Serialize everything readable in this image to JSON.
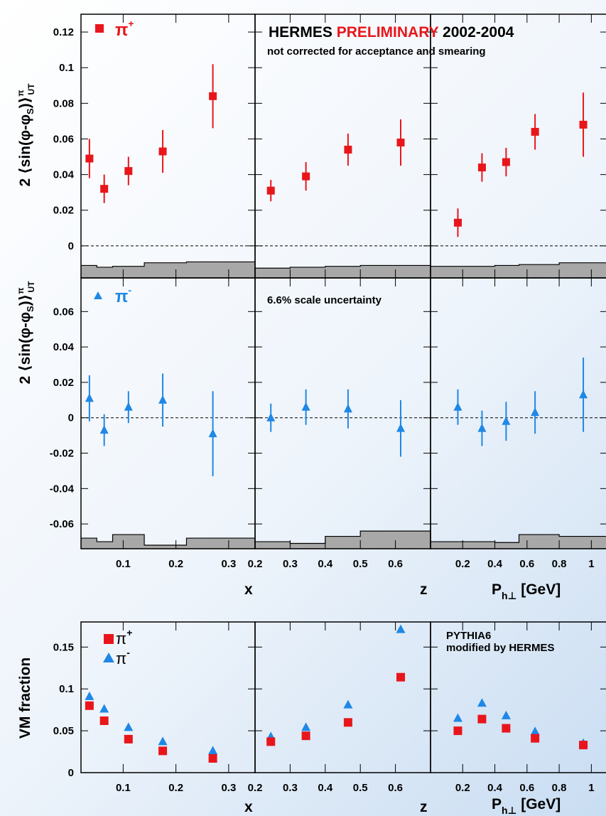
{
  "header": {
    "banner_prefix": "HERMES ",
    "banner_highlight": "PRELIMINARY",
    "banner_suffix": " 2002-2004",
    "banner_note": "not corrected for acceptance and smearing",
    "scale_note": "6.6% scale uncertainty",
    "model_line1": "PYTHIA6",
    "model_line2": "modified by HERMES"
  },
  "colors": {
    "pi_plus": "#e8161b",
    "pi_minus": "#1f88e5",
    "band_fill": "#a8a8a8",
    "banner_highlight": "#e8161b"
  },
  "chart_data": [
    {
      "type": "scatter",
      "panel": "top row: pi+ Sivers-type moment",
      "ylabel": "2 ⟨sin(φ-φS)⟩UTπ",
      "legend": [
        {
          "label": "π+",
          "marker": "square",
          "color": "#e8161b"
        }
      ],
      "xlabels": [
        "x",
        "z",
        "Ph⊥ [GeV]"
      ],
      "ylim": [
        -0.018,
        0.13
      ],
      "yticks": [
        "0",
        "0.02",
        "0.04",
        "0.06",
        "0.08",
        "0.1",
        "0.12"
      ],
      "series": [
        {
          "xvar": "x",
          "xlim": [
            0.02,
            0.35
          ],
          "x": [
            0.036,
            0.064,
            0.11,
            0.175,
            0.27
          ],
          "y": [
            0.049,
            0.032,
            0.042,
            0.053,
            0.084
          ],
          "err": [
            0.011,
            0.008,
            0.008,
            0.012,
            0.018
          ],
          "band_x": [
            0.02,
            0.05,
            0.08,
            0.14,
            0.22,
            0.35
          ],
          "band_top": [
            -0.011,
            -0.012,
            -0.0115,
            -0.0095,
            -0.009
          ]
        },
        {
          "xvar": "z",
          "xlim": [
            0.2,
            0.7
          ],
          "x": [
            0.245,
            0.345,
            0.465,
            0.615
          ],
          "y": [
            0.031,
            0.039,
            0.054,
            0.058
          ],
          "err": [
            0.006,
            0.008,
            0.009,
            0.013
          ],
          "band_x": [
            0.2,
            0.3,
            0.4,
            0.5,
            0.7
          ],
          "band_top": [
            -0.0125,
            -0.012,
            -0.0115,
            -0.011
          ]
        },
        {
          "xvar": "Ph⊥",
          "xlim": [
            0.0,
            1.1
          ],
          "x": [
            0.17,
            0.32,
            0.47,
            0.65,
            0.95
          ],
          "y": [
            0.013,
            0.044,
            0.047,
            0.064,
            0.068
          ],
          "err": [
            0.008,
            0.008,
            0.008,
            0.01,
            0.018
          ],
          "band_x": [
            0.0,
            0.25,
            0.4,
            0.55,
            0.8,
            1.1
          ],
          "band_top": [
            -0.0115,
            -0.0115,
            -0.011,
            -0.0105,
            -0.0095
          ]
        }
      ],
      "zero_line": "dashed"
    },
    {
      "type": "scatter",
      "panel": "middle row: pi- Sivers-type moment",
      "ylabel": "2 ⟨sin(φ-φS)⟩UTπ",
      "legend": [
        {
          "label": "π-",
          "marker": "triangle",
          "color": "#1f88e5"
        }
      ],
      "xlabels": [
        "x",
        "z",
        "Ph⊥ [GeV]"
      ],
      "ylim": [
        -0.074,
        0.079
      ],
      "yticks": [
        "-0.06",
        "-0.04",
        "-0.02",
        "0",
        "0.02",
        "0.04",
        "0.06"
      ],
      "series": [
        {
          "xvar": "x",
          "xlim": [
            0.02,
            0.35
          ],
          "x": [
            0.036,
            0.064,
            0.11,
            0.175,
            0.27
          ],
          "y": [
            0.011,
            -0.007,
            0.006,
            0.01,
            -0.009
          ],
          "err": [
            0.013,
            0.009,
            0.009,
            0.015,
            0.024
          ],
          "band_x": [
            0.02,
            0.05,
            0.08,
            0.14,
            0.22,
            0.35
          ],
          "band_top": [
            -0.068,
            -0.07,
            -0.066,
            -0.072,
            -0.068
          ]
        },
        {
          "xvar": "z",
          "xlim": [
            0.2,
            0.7
          ],
          "x": [
            0.245,
            0.345,
            0.465,
            0.615
          ],
          "y": [
            0.0,
            0.006,
            0.005,
            -0.006
          ],
          "err": [
            0.008,
            0.01,
            0.011,
            0.016
          ],
          "band_x": [
            0.2,
            0.3,
            0.4,
            0.5,
            0.7
          ],
          "band_top": [
            -0.07,
            -0.071,
            -0.067,
            -0.064
          ]
        },
        {
          "xvar": "Ph⊥",
          "xlim": [
            0.0,
            1.1
          ],
          "x": [
            0.17,
            0.32,
            0.47,
            0.65,
            0.95
          ],
          "y": [
            0.006,
            -0.006,
            -0.002,
            0.003,
            0.013
          ],
          "err": [
            0.01,
            0.01,
            0.011,
            0.012,
            0.021
          ],
          "band_x": [
            0.0,
            0.25,
            0.4,
            0.55,
            0.8,
            1.1
          ],
          "band_top": [
            -0.07,
            -0.07,
            -0.0705,
            -0.066,
            -0.067
          ]
        }
      ],
      "zero_line": "dashed"
    },
    {
      "type": "scatter",
      "panel": "bottom row: vector-meson fraction",
      "ylabel": "VM fraction",
      "legend": [
        {
          "label": "π+",
          "marker": "square",
          "color": "#e8161b"
        },
        {
          "label": "π-",
          "marker": "triangle",
          "color": "#1f88e5"
        }
      ],
      "xlabels": [
        "x",
        "z",
        "Ph⊥ [GeV]"
      ],
      "ylim": [
        0.0,
        0.18
      ],
      "yticks": [
        "0",
        "0.05",
        "0.1",
        "0.15"
      ],
      "series": [
        {
          "xvar": "x",
          "xlim": [
            0.02,
            0.35
          ],
          "x": [
            0.036,
            0.064,
            0.11,
            0.175,
            0.27
          ],
          "pi_plus": [
            0.08,
            0.062,
            0.04,
            0.026,
            0.017
          ],
          "pi_minus": [
            0.091,
            0.076,
            0.054,
            0.037,
            0.026
          ]
        },
        {
          "xvar": "z",
          "xlim": [
            0.2,
            0.7
          ],
          "x": [
            0.245,
            0.345,
            0.465,
            0.615
          ],
          "pi_plus": [
            0.037,
            0.044,
            0.06,
            0.114
          ],
          "pi_minus": [
            0.043,
            0.054,
            0.081,
            0.171
          ]
        },
        {
          "xvar": "Ph⊥",
          "xlim": [
            0.0,
            1.1
          ],
          "x": [
            0.17,
            0.32,
            0.47,
            0.65,
            0.95
          ],
          "pi_plus": [
            0.05,
            0.064,
            0.053,
            0.041,
            0.033
          ],
          "pi_minus": [
            0.065,
            0.083,
            0.068,
            0.049,
            0.035
          ]
        }
      ]
    }
  ],
  "tick_labels": {
    "x": [
      "0.1",
      "0.2",
      "0.3"
    ],
    "z": [
      "0.2",
      "0.3",
      "0.4",
      "0.5",
      "0.6"
    ],
    "pt": [
      "0.2",
      "0.4",
      "0.6",
      "0.8",
      "1"
    ]
  }
}
